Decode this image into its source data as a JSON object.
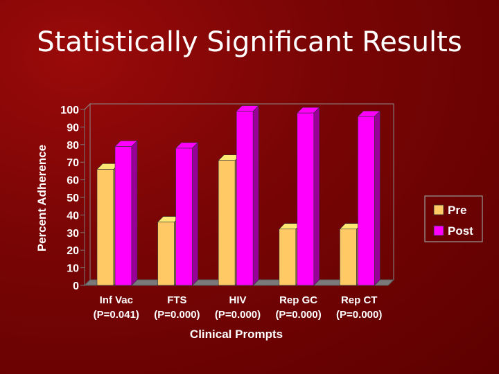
{
  "slide": {
    "title": "Statistically Significant Results"
  },
  "chart_data": {
    "type": "bar",
    "categories": [
      "Inf Vac",
      "FTS",
      "HIV",
      "Rep GC",
      "Rep CT"
    ],
    "category_sublabels": [
      "(P=0.041)",
      "(P=0.000)",
      "(P=0.000)",
      "(P=0.000)",
      "(P=0.000)"
    ],
    "series": [
      {
        "name": "Pre",
        "values": [
          66,
          36,
          71,
          32,
          32
        ],
        "color": "#ffc966"
      },
      {
        "name": "Post",
        "values": [
          79,
          78,
          99,
          98,
          96
        ],
        "color": "#ff00ff"
      }
    ],
    "title": "",
    "xlabel": "Clinical Prompts",
    "ylabel": "Percent Adherence",
    "ylim": [
      0,
      100
    ],
    "yticks": [
      0,
      10,
      20,
      30,
      40,
      50,
      60,
      70,
      80,
      90,
      100
    ],
    "grid": false,
    "legend_position": "right",
    "style": "3d-bar"
  }
}
